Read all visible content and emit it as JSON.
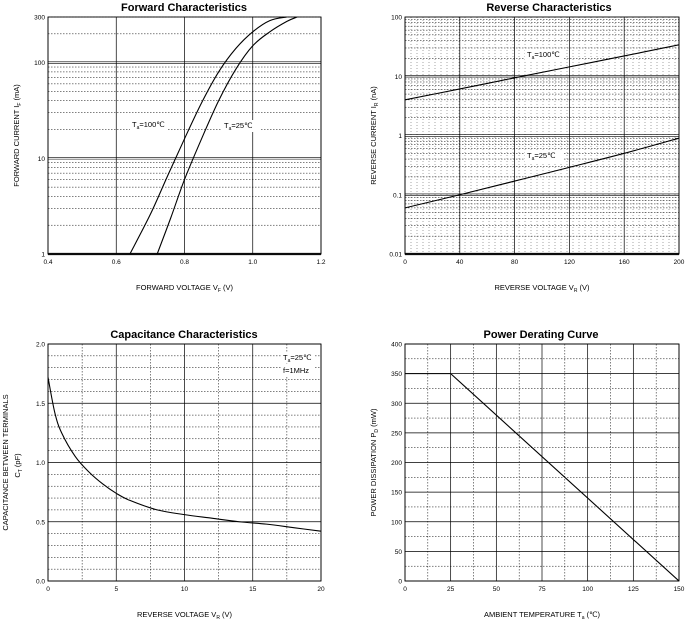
{
  "chart_data": [
    {
      "type": "line",
      "title": "Forward    Characteristics",
      "xlabel": "FORWARD VOLTAGE",
      "xlabel_sym": "V",
      "xlabel_sub": "F",
      "xlabel_unit": "(V)",
      "ylabel": "FORWARD CURRENT",
      "ylabel_sym": "I",
      "ylabel_sub": "F",
      "ylabel_unit": "(mA)",
      "x_scale": "linear",
      "y_scale": "log",
      "xlim": [
        0.4,
        1.2
      ],
      "ylim": [
        1,
        300
      ],
      "x_ticks": [
        "0.4",
        "0.6",
        "0.8",
        "1.0",
        "1.2"
      ],
      "y_ticks": [
        "1",
        "10",
        "100",
        "300"
      ],
      "grid": true,
      "series": [
        {
          "name": "Ta=100℃",
          "label_sym": "T",
          "label_sub": "a",
          "label_rest": "=100℃",
          "x": [
            0.64,
            0.7,
            0.75,
            0.8,
            0.85,
            0.9,
            0.95,
            1.0,
            1.05,
            1.1
          ],
          "y": [
            1,
            2.6,
            6.5,
            16,
            38,
            80,
            140,
            210,
            275,
            300
          ]
        },
        {
          "name": "Ta=25℃",
          "label_sym": "T",
          "label_sub": "a",
          "label_rest": "=25℃",
          "x": [
            0.72,
            0.76,
            0.8,
            0.85,
            0.9,
            0.95,
            1.0,
            1.05,
            1.1,
            1.13
          ],
          "y": [
            1,
            2.4,
            6,
            16,
            40,
            85,
            150,
            210,
            270,
            300
          ]
        }
      ]
    },
    {
      "type": "line",
      "title": "Reverse    Characteristics",
      "xlabel": "REVERSE VOLTAGE",
      "xlabel_sym": "V",
      "xlabel_sub": "R",
      "xlabel_unit": "(V)",
      "ylabel": "REVERSE CURRENT",
      "ylabel_sym": "I",
      "ylabel_sub": "R",
      "ylabel_unit": "(nA)",
      "x_scale": "linear",
      "y_scale": "log",
      "xlim": [
        0,
        200
      ],
      "ylim": [
        0.01,
        100
      ],
      "x_ticks": [
        "0",
        "40",
        "80",
        "120",
        "160",
        "200"
      ],
      "y_ticks": [
        "0.01",
        "0.1",
        "1",
        "10",
        "100"
      ],
      "grid": true,
      "series": [
        {
          "name": "Ta=100℃",
          "label_sym": "T",
          "label_sub": "a",
          "label_rest": "=100℃",
          "x": [
            0,
            40,
            80,
            120,
            160,
            200
          ],
          "y": [
            4,
            6.1,
            9.4,
            14.4,
            22,
            34
          ]
        },
        {
          "name": "Ta=25℃",
          "label_sym": "T",
          "label_sub": "a",
          "label_rest": "=25℃",
          "x": [
            0,
            40,
            80,
            120,
            160,
            200
          ],
          "y": [
            0.06,
            0.1,
            0.17,
            0.29,
            0.5,
            0.9
          ]
        }
      ]
    },
    {
      "type": "line",
      "title": "Capacitance Characteristics",
      "xlabel": "REVERSE VOLTAGE",
      "xlabel_sym": "V",
      "xlabel_sub": "R",
      "xlabel_unit": "(V)",
      "ylabel": "CAPACITANCE BETWEEN TERMINALS",
      "ylabel2_sym": "C",
      "ylabel2_sub": "T",
      "ylabel2_unit": "(pF)",
      "x_scale": "linear",
      "y_scale": "linear",
      "xlim": [
        0,
        20
      ],
      "ylim": [
        0,
        2.0
      ],
      "x_ticks": [
        "0",
        "5",
        "10",
        "15",
        "20"
      ],
      "y_ticks": [
        "0.0",
        "0.5",
        "1.0",
        "1.5",
        "2.0"
      ],
      "grid": true,
      "annotations": [
        {
          "sym": "T",
          "sub": "a",
          "rest": "=25℃"
        },
        {
          "sym": "",
          "sub": "",
          "rest": "f=1MHz"
        }
      ],
      "series": [
        {
          "x": [
            0,
            0.5,
            1,
            2,
            3,
            4,
            5,
            6,
            8,
            10,
            12,
            14,
            16,
            18,
            20
          ],
          "y": [
            1.72,
            1.42,
            1.25,
            1.05,
            0.92,
            0.82,
            0.74,
            0.68,
            0.6,
            0.56,
            0.53,
            0.5,
            0.48,
            0.45,
            0.42
          ]
        }
      ]
    },
    {
      "type": "line",
      "title": "Power Derating Curve",
      "xlabel": "AMBIENT TEMPERATURE",
      "xlabel_sym": "T",
      "xlabel_sub": "a",
      "xlabel_unit": "(℃)",
      "ylabel": "POWER DISSIPATION",
      "ylabel_sym": "P",
      "ylabel_sub": "D",
      "ylabel_unit": "(mW)",
      "x_scale": "linear",
      "y_scale": "linear",
      "xlim": [
        0,
        150
      ],
      "ylim": [
        0,
        400
      ],
      "x_ticks": [
        "0",
        "25",
        "50",
        "75",
        "100",
        "125",
        "150"
      ],
      "y_ticks": [
        "0",
        "50",
        "100",
        "150",
        "200",
        "250",
        "300",
        "350",
        "400"
      ],
      "grid": true,
      "series": [
        {
          "x": [
            0,
            25,
            150
          ],
          "y": [
            350,
            350,
            0
          ]
        }
      ]
    }
  ]
}
